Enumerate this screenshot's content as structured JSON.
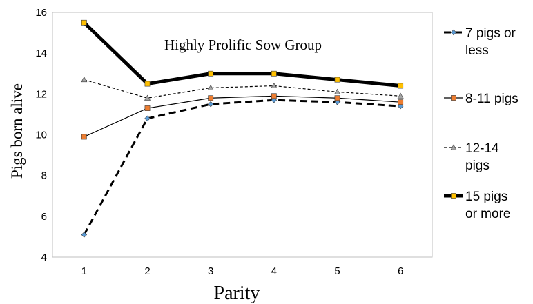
{
  "chart_data": {
    "type": "line",
    "title": "Highly Prolific Sow Group",
    "xlabel": "Parity",
    "ylabel": "Pigs born alive",
    "x": [
      1,
      2,
      3,
      4,
      5,
      6
    ],
    "xlim": [
      0.5,
      6.5
    ],
    "ylim": [
      4,
      16
    ],
    "yticks": [
      4,
      6,
      8,
      10,
      12,
      14,
      16
    ],
    "grid": false,
    "legend_position": "right",
    "series": [
      {
        "name": "7 pigs or less",
        "legend_lines": [
          "7 pigs or",
          "less"
        ],
        "values": [
          5.1,
          10.8,
          11.5,
          11.7,
          11.6,
          11.4
        ],
        "line_style": "dashed-bold",
        "marker": "diamond",
        "color": "#000000",
        "marker_color": "#5b9bd5"
      },
      {
        "name": "8-11 pigs",
        "legend_lines": [
          "8-11 pigs"
        ],
        "values": [
          9.9,
          11.3,
          11.8,
          11.9,
          11.8,
          11.6
        ],
        "line_style": "solid-thin",
        "marker": "square",
        "color": "#000000",
        "marker_color": "#ed7d31"
      },
      {
        "name": "12-14 pigs",
        "legend_lines": [
          "12-14",
          "pigs"
        ],
        "values": [
          12.7,
          11.8,
          12.3,
          12.4,
          12.1,
          11.9
        ],
        "line_style": "dashed-thin",
        "marker": "triangle",
        "color": "#000000",
        "marker_color": "#a5a5a5"
      },
      {
        "name": "15 pigs or more",
        "legend_lines": [
          "15 pigs",
          "or more"
        ],
        "values": [
          15.5,
          12.5,
          13.0,
          13.0,
          12.7,
          12.4
        ],
        "line_style": "solid-bold",
        "marker": "square",
        "color": "#000000",
        "marker_color": "#ffc000"
      }
    ]
  }
}
